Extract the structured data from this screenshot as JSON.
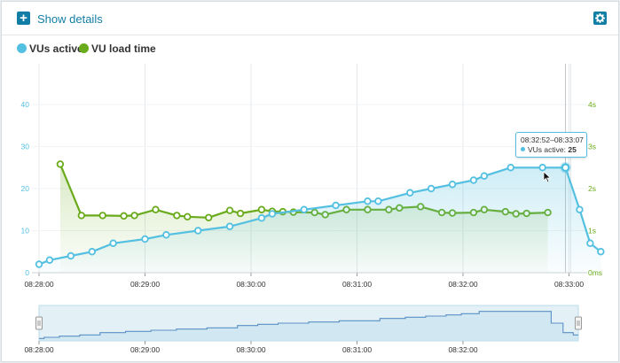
{
  "header": {
    "show_details_label": "Show details"
  },
  "legend": [
    {
      "label": "VUs active",
      "color": "#54c0e1"
    },
    {
      "label": "VU load time",
      "color": "#6aab1c"
    }
  ],
  "colors": {
    "accent": "#137ea5",
    "vus": "#54c0e1",
    "load": "#6aab1c",
    "grid": "#e4e8eb",
    "crosshair": "#c2c8cc"
  },
  "tooltip": {
    "time_range": "08:32:52–08:33:07",
    "series": "VUs active",
    "sep": ":",
    "value": "25"
  },
  "chart_data": [
    {
      "type": "line",
      "title": "",
      "legend_position": "top-left",
      "grid": true,
      "x_ticks": [
        "08:28:00",
        "08:29:00",
        "08:30:00",
        "08:31:00",
        "08:32:00",
        "08:33:00"
      ],
      "y_left": {
        "ticks": [
          "0",
          "10",
          "20",
          "30",
          "40"
        ],
        "range": [
          0,
          48
        ]
      },
      "y_right": {
        "ticks": [
          "0ms",
          "1s",
          "2s",
          "3s",
          "4s"
        ],
        "range": [
          0,
          4.8
        ]
      },
      "series": [
        {
          "name": "VUs active",
          "axis": "left",
          "color": "#54c0e1",
          "area": true,
          "x": [
            "08:28:00",
            "08:28:06",
            "08:28:18",
            "08:28:30",
            "08:28:42",
            "08:29:00",
            "08:29:12",
            "08:29:30",
            "08:29:48",
            "08:30:06",
            "08:30:12",
            "08:30:30",
            "08:30:48",
            "08:31:06",
            "08:31:12",
            "08:31:30",
            "08:31:42",
            "08:31:54",
            "08:32:06",
            "08:32:12",
            "08:32:27",
            "08:32:45",
            "08:32:58",
            "08:33:06",
            "08:33:12",
            "08:33:18"
          ],
          "values": [
            2,
            3,
            4,
            5,
            7,
            8,
            9,
            10,
            11,
            13,
            14,
            15,
            16,
            17,
            17,
            19,
            20,
            21,
            22,
            23,
            25,
            25,
            25,
            15,
            7,
            5
          ]
        },
        {
          "name": "VU load time",
          "axis": "right",
          "color": "#6aab1c",
          "area": true,
          "x": [
            "08:28:12",
            "08:28:24",
            "08:28:36",
            "08:28:48",
            "08:28:54",
            "08:29:06",
            "08:29:18",
            "08:29:24",
            "08:29:36",
            "08:29:48",
            "08:29:54",
            "08:30:06",
            "08:30:12",
            "08:30:18",
            "08:30:24",
            "08:30:36",
            "08:30:42",
            "08:30:54",
            "08:31:06",
            "08:31:18",
            "08:31:24",
            "08:31:36",
            "08:31:48",
            "08:31:54",
            "08:32:06",
            "08:32:12",
            "08:32:24",
            "08:32:30",
            "08:32:36",
            "08:32:48"
          ],
          "values": [
            2.58,
            1.36,
            1.36,
            1.35,
            1.36,
            1.5,
            1.36,
            1.33,
            1.31,
            1.48,
            1.41,
            1.5,
            1.46,
            1.45,
            1.44,
            1.43,
            1.38,
            1.5,
            1.5,
            1.5,
            1.54,
            1.57,
            1.43,
            1.42,
            1.43,
            1.5,
            1.45,
            1.4,
            1.41,
            1.43
          ]
        }
      ]
    },
    {
      "type": "area",
      "title": "navigator",
      "x_ticks": [
        "08:28:00",
        "08:29:00",
        "08:30:00",
        "08:31:00",
        "08:32:00"
      ],
      "series": [
        {
          "name": "VUs active",
          "color": "#5a8fc5",
          "x": [
            "08:28:00",
            "08:28:06",
            "08:28:18",
            "08:28:30",
            "08:28:42",
            "08:29:00",
            "08:29:12",
            "08:29:30",
            "08:29:48",
            "08:30:06",
            "08:30:12",
            "08:30:30",
            "08:30:48",
            "08:31:06",
            "08:31:12",
            "08:31:30",
            "08:31:42",
            "08:31:54",
            "08:32:06",
            "08:32:12",
            "08:32:27",
            "08:32:45",
            "08:32:58",
            "08:33:06",
            "08:33:12",
            "08:33:18"
          ],
          "values": [
            2,
            3,
            4,
            5,
            7,
            8,
            9,
            10,
            11,
            13,
            14,
            15,
            16,
            17,
            17,
            19,
            20,
            21,
            22,
            23,
            25,
            25,
            25,
            15,
            7,
            5
          ]
        }
      ]
    }
  ]
}
